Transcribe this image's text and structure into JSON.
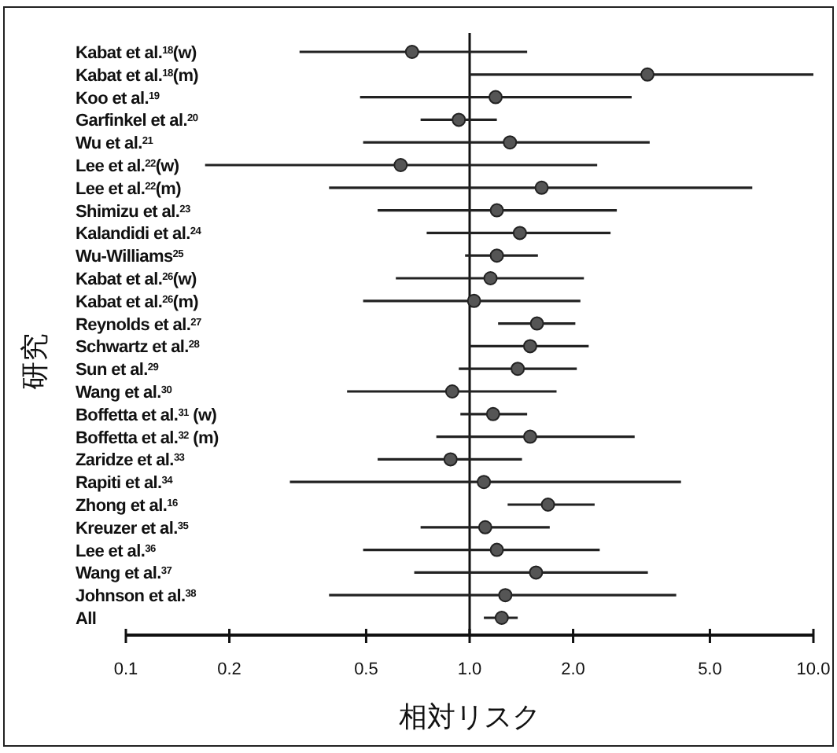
{
  "chart_data": {
    "type": "scatter",
    "orientation": "horizontal",
    "xlabel": "相対リスク",
    "ylabel": "研究",
    "categories": [
      "Kabat et al.$^{18}$(w)",
      "Kabat et al.$^{18}$(m)",
      "Koo et al.$^{19}$",
      "Garfinkel et al.$^{20}$",
      "Wu et al.$^{21}$",
      "Lee et al.$^{22}$(w)",
      "Lee et al.$^{22}$(m)",
      "Shimizu et al.$^{23}$",
      "Kalandidi et al.$^{24}$",
      "Wu-Williams$^{25}$",
      "Kabat et al.$^{26}$(w)",
      "Kabat et al.$^{26}$(m)",
      "Reynolds et al.$^{27}$",
      "Schwartz et al.$^{28}$",
      "Sun et al.$^{29}$",
      "Wang et al.$^{30}$",
      "Boffetta et al.$^{31}$ (w)",
      "Boffetta et al.$^{32}$ (m)",
      "Zaridze et al.$^{33}$",
      "Rapiti et al.$^{34}$",
      "Zhong et al.$^{16}$",
      "Kreuzer et al.$^{35}$",
      "Lee et al.$^{36}$",
      "Wang et al.$^{37}$",
      "Johnson et al.$^{38}$",
      "All"
    ],
    "series": [
      {
        "color": "#555555",
        "marker": "circle",
        "values": [
          0.68,
          3.29,
          1.19,
          0.93,
          1.31,
          0.63,
          1.62,
          1.2,
          1.4,
          1.2,
          1.15,
          1.03,
          1.57,
          1.5,
          1.38,
          0.89,
          1.17,
          1.5,
          0.88,
          1.1,
          1.69,
          1.11,
          1.2,
          1.56,
          1.27,
          1.24
        ],
        "errors": [
          [
            0.32,
            1.47
          ],
          [
            1.0,
            10.0
          ],
          [
            0.48,
            2.96
          ],
          [
            0.72,
            1.2
          ],
          [
            0.49,
            3.34
          ],
          [
            0.17,
            2.35
          ],
          [
            0.39,
            6.64
          ],
          [
            0.54,
            2.68
          ],
          [
            0.75,
            2.57
          ],
          [
            0.97,
            1.58
          ],
          [
            0.61,
            2.15
          ],
          [
            0.49,
            2.1
          ],
          [
            1.21,
            2.03
          ],
          [
            1.0,
            2.22
          ],
          [
            0.93,
            2.05
          ],
          [
            0.44,
            1.79
          ],
          [
            0.94,
            1.47
          ],
          [
            0.8,
            3.02
          ],
          [
            0.54,
            1.42
          ],
          [
            0.3,
            4.12
          ],
          [
            1.29,
            2.31
          ],
          [
            0.72,
            1.71
          ],
          [
            0.49,
            2.39
          ],
          [
            0.69,
            3.3
          ],
          [
            0.39,
            3.99
          ],
          [
            1.1,
            1.38
          ]
        ]
      }
    ],
    "log": "x",
    "xlim": [
      0.1,
      10
    ],
    "xticks": [
      0.1,
      0.2,
      0.5,
      {
        "value": 1,
        "label": "1.0"
      },
      {
        "value": 2,
        "label": "2.0"
      },
      {
        "value": 5,
        "label": "5.0"
      },
      {
        "value": 10,
        "label": "10.0"
      }
    ],
    "ref_lines": [
      {
        "axis": "x",
        "value": 1,
        "color": "#111111",
        "line_style": "solid"
      }
    ],
    "grid": false
  }
}
